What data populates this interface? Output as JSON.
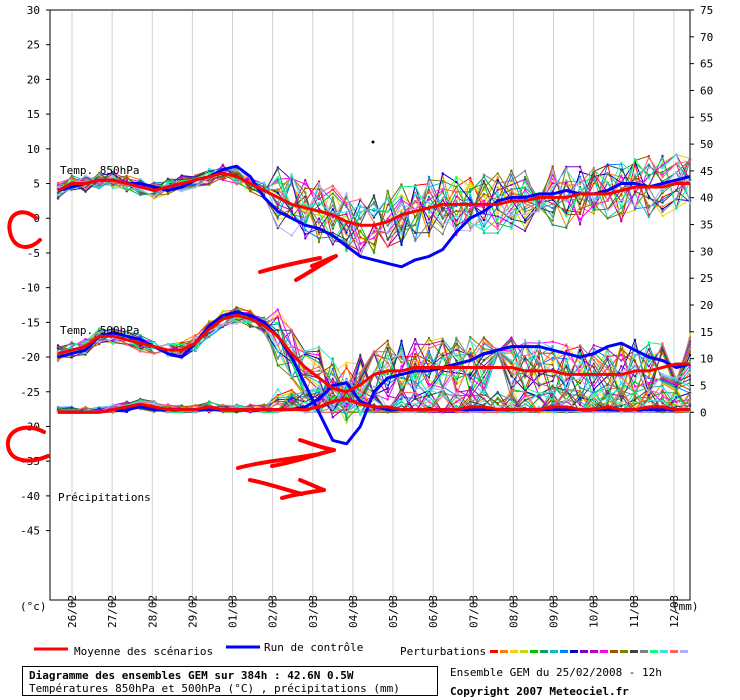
{
  "chart_data": {
    "type": "line",
    "y_left_ticks": [
      "30",
      "25",
      "20",
      "15",
      "10",
      "5",
      "0",
      "-5",
      "-10",
      "-15",
      "-20",
      "-25",
      "-30",
      "-35",
      "-40",
      "-45"
    ],
    "y_right_ticks": [
      "75",
      "70",
      "65",
      "60",
      "55",
      "50",
      "45",
      "40",
      "35",
      "30",
      "25",
      "20",
      "15",
      "10",
      "5",
      "0"
    ],
    "y_left_unit": "(°c)",
    "y_right_unit": "(mm)",
    "x_dates": [
      "26/02",
      "27/02",
      "28/02",
      "29/02",
      "01/03",
      "02/03",
      "03/03",
      "04/03",
      "05/03",
      "06/03",
      "07/03",
      "08/03",
      "09/03",
      "10/03",
      "11/03",
      "12/03"
    ],
    "panel_labels": {
      "t850": "Temp. 850hPa",
      "t500": "Temp. 500hPa",
      "precip": "Précipitations"
    },
    "series": [
      {
        "name": "Moyenne des scénarios",
        "color": "#ff0000",
        "t850": [
          4,
          5,
          5,
          5.5,
          5.5,
          5,
          4.5,
          4,
          4.5,
          5,
          5.5,
          6,
          6.5,
          6,
          5,
          4,
          3,
          2,
          1.5,
          1,
          0.5,
          -0.5,
          -1,
          -1,
          -0.5,
          0.5,
          1,
          1.5,
          2,
          2,
          2,
          2,
          2,
          2.5,
          2.5,
          3,
          3,
          3,
          3.5,
          3.5,
          3.5,
          4,
          4.5,
          4.5,
          4.5,
          5,
          5
        ],
        "t500": [
          -19.5,
          -19,
          -18.5,
          -17,
          -17,
          -17.5,
          -18,
          -18.5,
          -19,
          -19,
          -18,
          -16,
          -14.5,
          -14,
          -14.5,
          -15.5,
          -17,
          -19.5,
          -21.5,
          -23,
          -24.5,
          -25,
          -24,
          -22.5,
          -22,
          -22,
          -21.5,
          -21.5,
          -21.5,
          -21.5,
          -21.5,
          -21.5,
          -21.5,
          -21.5,
          -22,
          -22,
          -22,
          -22.5,
          -22.5,
          -22.5,
          -22.5,
          -22.5,
          -22,
          -22,
          -21.5,
          -21,
          -21
        ],
        "precip": [
          0,
          0,
          0,
          0,
          0.5,
          1,
          1.5,
          1,
          0.5,
          0.5,
          0.5,
          1,
          0.5,
          0.5,
          0.5,
          0.5,
          0.5,
          0.5,
          0.5,
          1,
          2,
          2.5,
          1.5,
          1,
          1,
          0.5,
          0.5,
          0.5,
          0.5,
          0.5,
          1,
          1,
          0.5,
          0.5,
          0.5,
          0.5,
          1,
          1,
          0.5,
          0.5,
          1,
          0.5,
          0.5,
          1,
          1,
          0.5,
          0.5
        ]
      },
      {
        "name": "Run de contrôle",
        "color": "#0000ff",
        "t850": [
          4,
          4.5,
          5,
          5.5,
          5.5,
          5,
          5,
          4.5,
          4,
          4.5,
          5.5,
          6,
          7,
          7.5,
          6,
          3,
          1,
          0,
          -1,
          -1.5,
          -2.5,
          -4,
          -5.5,
          -6,
          -6.5,
          -7,
          -6,
          -5.5,
          -4.5,
          -2,
          0,
          1,
          2.5,
          3,
          3,
          3.5,
          3.5,
          4,
          3.5,
          3.5,
          4,
          5,
          5,
          4.5,
          5,
          5.5,
          6
        ],
        "t500": [
          -20,
          -19.5,
          -19,
          -17,
          -16.5,
          -17,
          -17.5,
          -18.5,
          -19.5,
          -20,
          -18,
          -15.5,
          -14,
          -13.5,
          -14,
          -15,
          -17,
          -20,
          -24,
          -28,
          -32,
          -32.5,
          -30,
          -25,
          -23,
          -22.5,
          -22,
          -22,
          -21.5,
          -21,
          -20.5,
          -19.5,
          -19,
          -18.5,
          -18.5,
          -18.5,
          -19,
          -19.5,
          -20,
          -19.5,
          -18.5,
          -18,
          -19,
          -20,
          -20.5,
          -21.5,
          -21
        ],
        "precip": [
          0,
          0,
          0,
          0,
          0.5,
          0.5,
          1,
          0.5,
          0.5,
          0.5,
          0.5,
          0.5,
          0.5,
          0.5,
          0.5,
          0.5,
          0.5,
          0.5,
          1,
          2.5,
          5,
          5.5,
          2,
          1,
          0.5,
          0.5,
          0.5,
          0.5,
          0.5,
          0.5,
          0.5,
          0.5,
          0.5,
          0.5,
          0.5,
          0.5,
          0.5,
          0.5,
          0.5,
          0.5,
          0.5,
          0.5,
          0.5,
          0.5,
          0.5,
          0.5,
          0.5
        ]
      }
    ],
    "perturbation_colors": [
      "#ff0000",
      "#ff8000",
      "#ffd000",
      "#c0e000",
      "#00c000",
      "#00a060",
      "#00c0c0",
      "#0080ff",
      "#0000c0",
      "#8000c0",
      "#c000c0",
      "#ff00ff",
      "#a05000",
      "#808000",
      "#404040",
      "#808080",
      "#00ff80",
      "#40e0e0",
      "#ff6060",
      "#b0b0ff"
    ],
    "ylim_left": [
      -55,
      30
    ],
    "ylim_right": [
      -35,
      75
    ]
  },
  "legend": {
    "mean_label": "Moyenne des scénarios",
    "control_label": "Run de contrôle",
    "pert_label": "Perturbations"
  },
  "footer": {
    "title": "Diagramme des ensembles GEM sur 384h : 42.6N 0.5W",
    "subtitle": "Températures 850hPa et 500hPa (°C) , précipitations (mm)",
    "run": "Ensemble GEM du 25/02/2008 - 12h",
    "copyright": "Copyright 2007 Meteociel.fr"
  }
}
